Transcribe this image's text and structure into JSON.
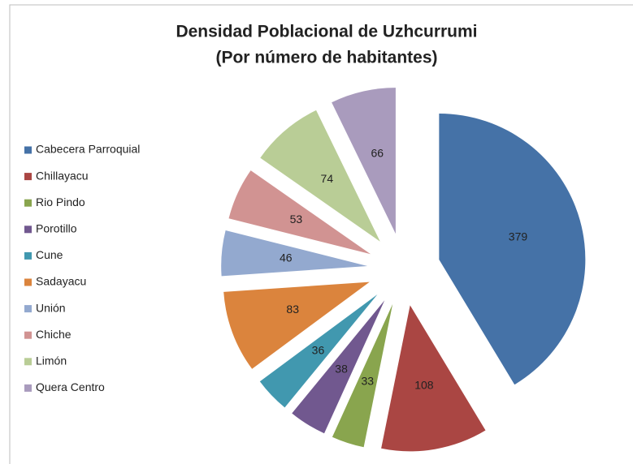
{
  "chart_data": {
    "type": "pie",
    "title": "Densidad Poblacional de Uzhcurrumi",
    "subtitle": "(Por número de habitantes)",
    "categories": [
      "Cabecera Parroquial",
      "Chillayacu",
      "Rio Pindo",
      "Porotillo",
      "Cune",
      "Sadayacu",
      "Unión",
      "Chiche",
      "Limón",
      "Quera Centro"
    ],
    "values": [
      379,
      108,
      33,
      38,
      36,
      83,
      46,
      53,
      74,
      66
    ],
    "colors": [
      "#4572A7",
      "#AA4643",
      "#89A54E",
      "#71588F",
      "#4198AF",
      "#DB843D",
      "#93A9CF",
      "#D19392",
      "#B9CD96",
      "#A99BBD"
    ],
    "legend": "left"
  }
}
